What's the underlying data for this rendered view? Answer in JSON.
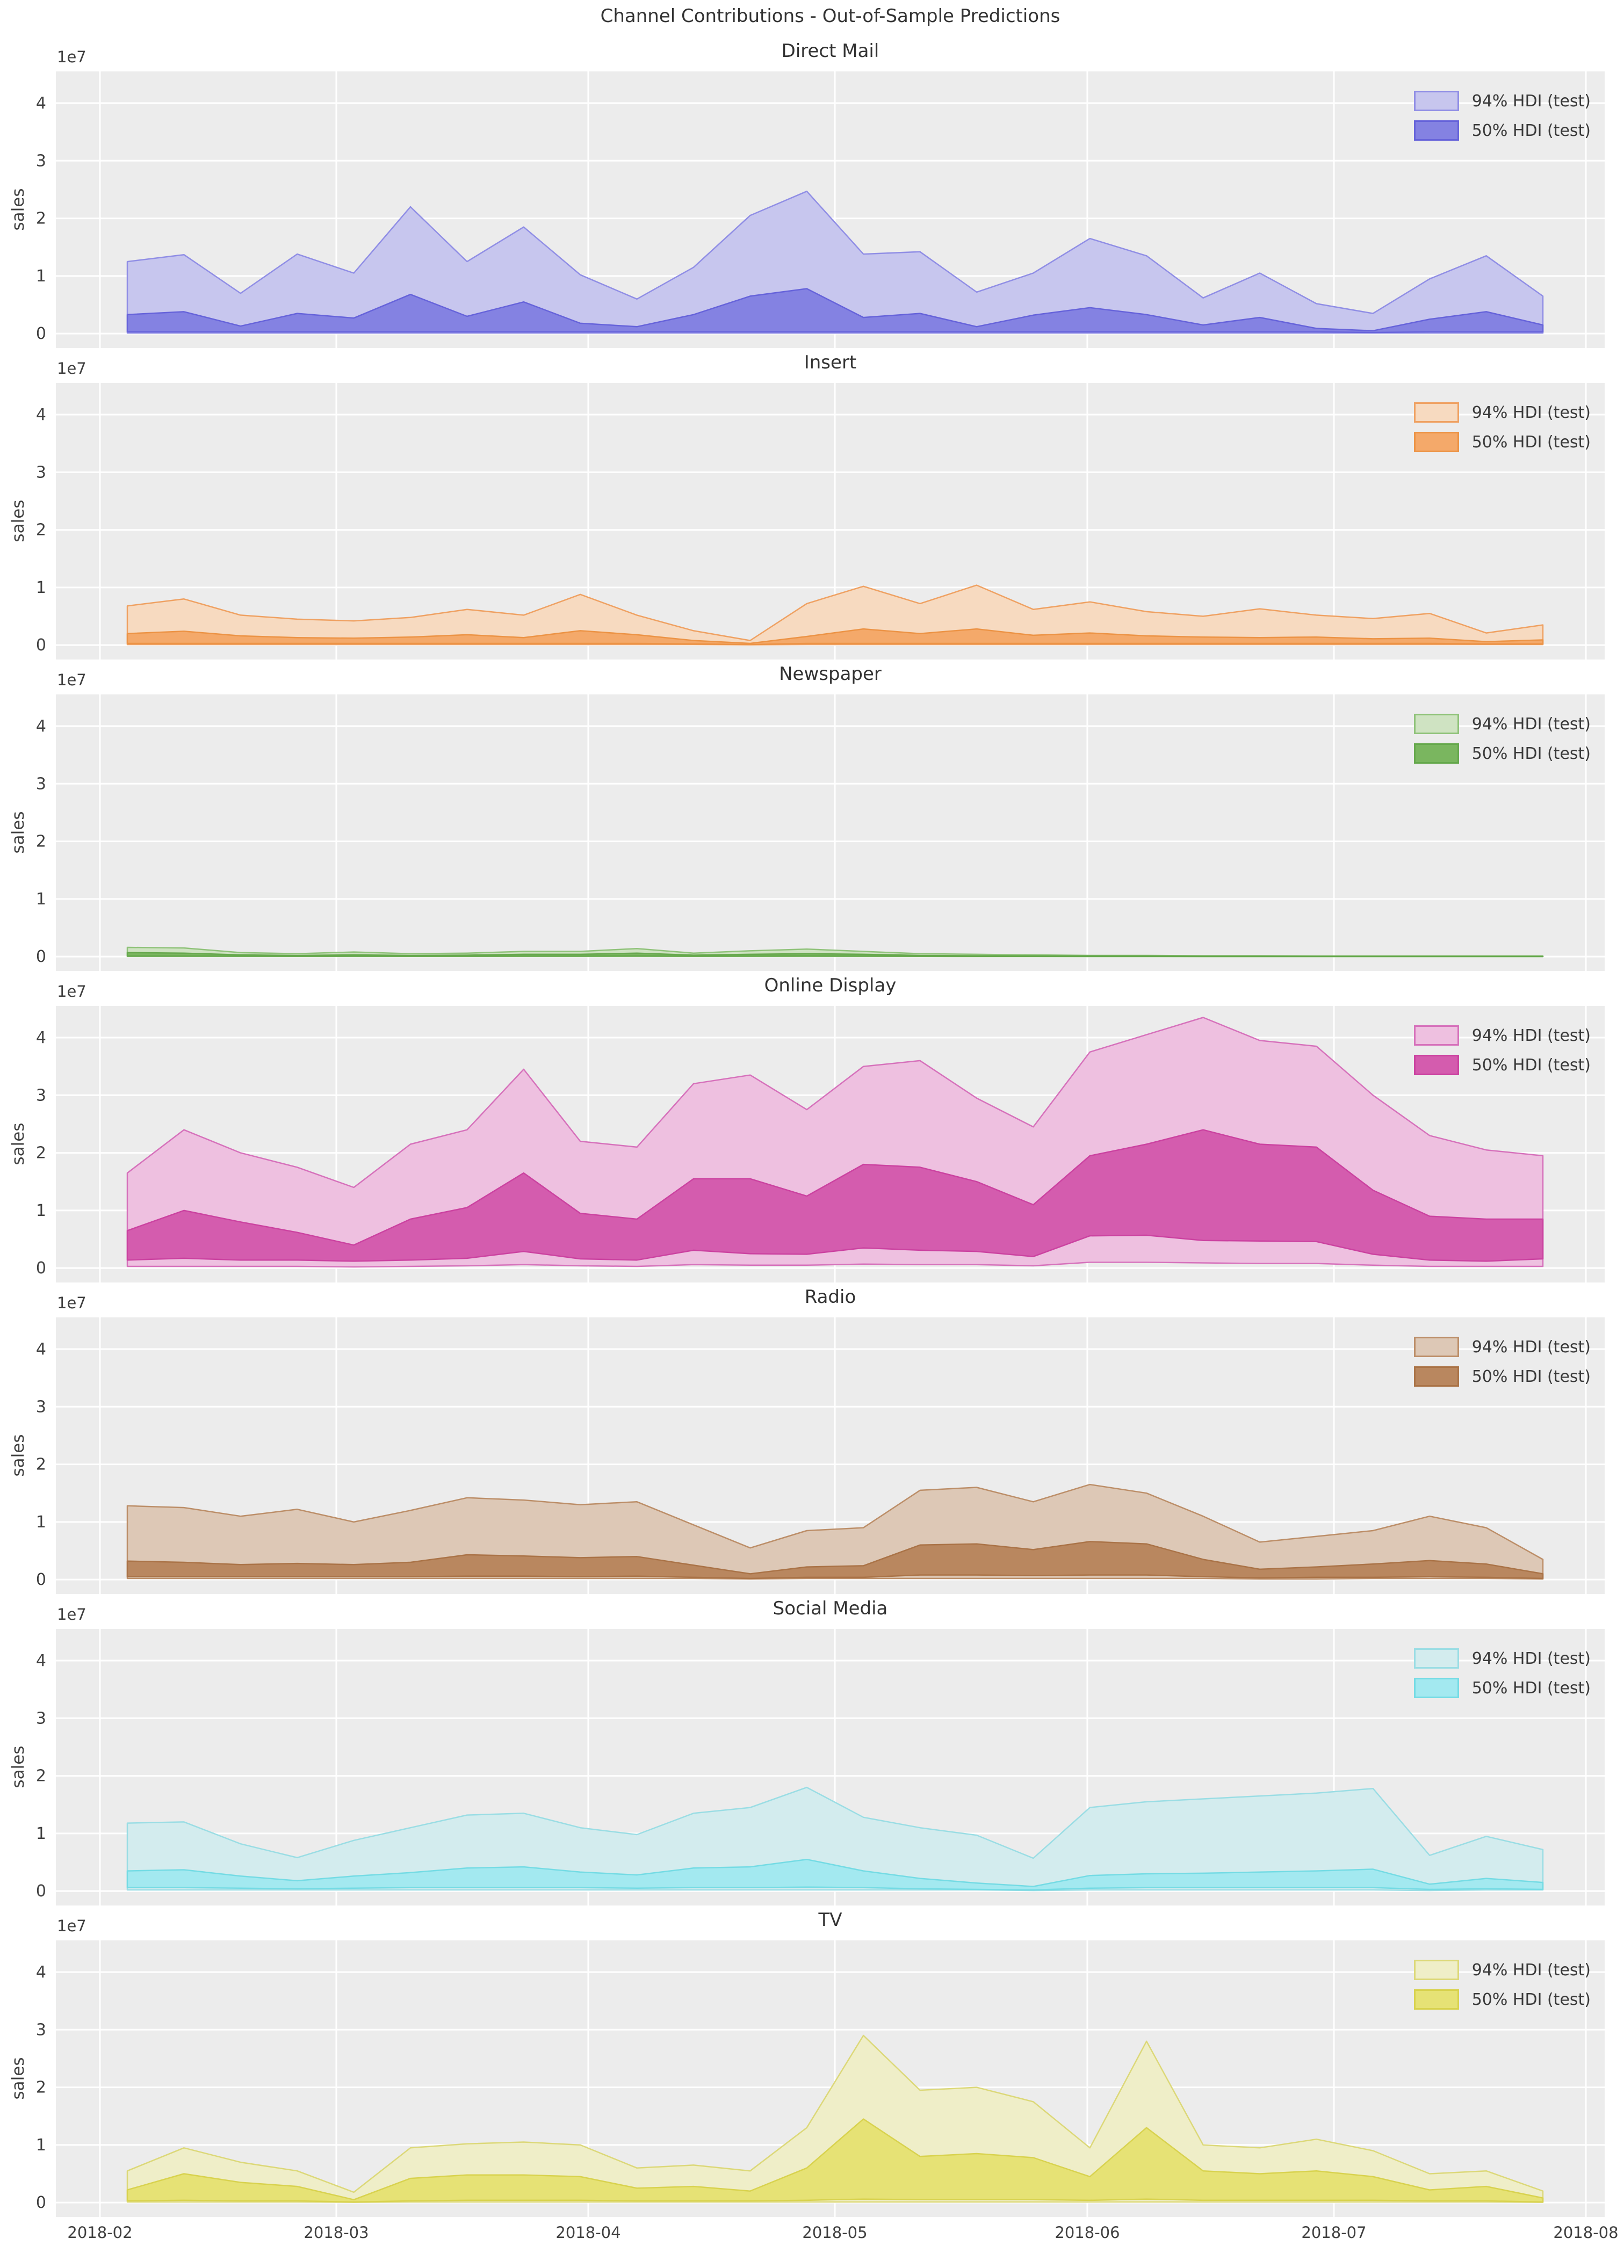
{
  "figure": {
    "suptitle": "Channel Contributions - Out-of-Sample Predictions",
    "ylabel": "sales",
    "offset_label": "1e7",
    "background": "#ffffff",
    "panel_color": "#ececec",
    "grid_color": "#ffffff",
    "text_color": "#3a3a3a",
    "yticks": [
      "0",
      "1",
      "2",
      "3",
      "4"
    ],
    "xticks": [
      "2018-02",
      "2018-03",
      "2018-04",
      "2018-05",
      "2018-06",
      "2018-07",
      "2018-08"
    ],
    "legend_labels": [
      "94% HDI (test)",
      "50% HDI (test)"
    ]
  },
  "chart_data": [
    {
      "type": "area",
      "title": "Direct Mail",
      "unit": "1e7",
      "ylim": [
        -0.25,
        4.55
      ],
      "grid": true,
      "legend_position": "upper right",
      "colors": {
        "fill94": "#c7c6ee",
        "edge94": "#908ee5",
        "fill50": "#8482e2",
        "edge50": "#6663da"
      },
      "hdi94_upper": [
        1.25,
        1.37,
        0.7,
        1.38,
        1.05,
        2.2,
        1.25,
        1.85,
        1.02,
        0.6,
        1.15,
        2.05,
        2.47,
        1.38,
        1.42,
        0.72,
        1.05,
        1.65,
        1.35,
        0.62,
        1.05,
        0.52,
        0.35,
        0.95,
        1.35,
        0.65
      ],
      "hdi94_lower": [
        0.01,
        0.01,
        0.01,
        0.01,
        0.01,
        0.01,
        0.01,
        0.01,
        0.01,
        0.01,
        0.01,
        0.01,
        0.01,
        0.01,
        0.01,
        0.01,
        0.01,
        0.01,
        0.01,
        0.01,
        0.01,
        0.01,
        0.01,
        0.01,
        0.01,
        0.01
      ],
      "hdi50_upper": [
        0.33,
        0.38,
        0.13,
        0.35,
        0.27,
        0.68,
        0.3,
        0.55,
        0.18,
        0.12,
        0.33,
        0.65,
        0.78,
        0.28,
        0.35,
        0.12,
        0.32,
        0.45,
        0.33,
        0.15,
        0.28,
        0.09,
        0.05,
        0.25,
        0.38,
        0.15
      ],
      "hdi50_lower": [
        0.03,
        0.03,
        0.03,
        0.03,
        0.03,
        0.03,
        0.03,
        0.03,
        0.03,
        0.03,
        0.03,
        0.03,
        0.03,
        0.03,
        0.03,
        0.03,
        0.03,
        0.03,
        0.03,
        0.03,
        0.03,
        0.03,
        0.02,
        0.03,
        0.03,
        0.03
      ]
    },
    {
      "type": "area",
      "title": "Insert",
      "unit": "1e7",
      "ylim": [
        -0.25,
        4.55
      ],
      "grid": true,
      "legend_position": "upper right",
      "colors": {
        "fill94": "#f7dac0",
        "edge94": "#efa162",
        "fill50": "#f4a96a",
        "edge50": "#ec9345"
      },
      "hdi94_upper": [
        0.68,
        0.8,
        0.52,
        0.45,
        0.42,
        0.48,
        0.62,
        0.52,
        0.88,
        0.52,
        0.25,
        0.08,
        0.72,
        1.02,
        0.72,
        1.04,
        0.62,
        0.75,
        0.58,
        0.5,
        0.63,
        0.52,
        0.46,
        0.55,
        0.21,
        0.35
      ],
      "hdi94_lower": [
        0.01,
        0.01,
        0.01,
        0.01,
        0.01,
        0.01,
        0.01,
        0.01,
        0.01,
        0.01,
        0.01,
        0.005,
        0.01,
        0.01,
        0.01,
        0.01,
        0.01,
        0.01,
        0.01,
        0.01,
        0.01,
        0.01,
        0.01,
        0.01,
        0.01,
        0.01
      ],
      "hdi50_upper": [
        0.2,
        0.24,
        0.16,
        0.13,
        0.12,
        0.14,
        0.18,
        0.13,
        0.25,
        0.18,
        0.08,
        0.03,
        0.15,
        0.28,
        0.2,
        0.28,
        0.17,
        0.21,
        0.16,
        0.14,
        0.13,
        0.14,
        0.11,
        0.12,
        0.06,
        0.09
      ],
      "hdi50_lower": [
        0.03,
        0.03,
        0.03,
        0.03,
        0.03,
        0.03,
        0.03,
        0.03,
        0.03,
        0.03,
        0.02,
        0.01,
        0.03,
        0.03,
        0.03,
        0.03,
        0.03,
        0.03,
        0.03,
        0.03,
        0.03,
        0.03,
        0.03,
        0.03,
        0.02,
        0.02
      ]
    },
    {
      "type": "area",
      "title": "Newspaper",
      "unit": "1e7",
      "ylim": [
        -0.25,
        4.55
      ],
      "grid": true,
      "legend_position": "upper right",
      "colors": {
        "fill94": "#cfe3c2",
        "edge94": "#8fc279",
        "fill50": "#7ab65f",
        "edge50": "#65a84c"
      },
      "hdi94_upper": [
        0.16,
        0.15,
        0.07,
        0.05,
        0.08,
        0.05,
        0.06,
        0.09,
        0.09,
        0.14,
        0.06,
        0.1,
        0.13,
        0.09,
        0.05,
        0.04,
        0.03,
        0.02,
        0.02,
        0.015,
        0.015,
        0.01,
        0.01,
        0.01,
        0.01,
        0.01
      ],
      "hdi94_lower": [
        0.003,
        0.003,
        0.003,
        0.003,
        0.003,
        0.003,
        0.003,
        0.003,
        0.003,
        0.003,
        0.003,
        0.003,
        0.003,
        0.003,
        0.003,
        0.002,
        0.002,
        0.002,
        0.002,
        0.002,
        0.002,
        0.002,
        0.002,
        0.002,
        0.002,
        0.002
      ],
      "hdi50_upper": [
        0.07,
        0.06,
        0.03,
        0.02,
        0.03,
        0.02,
        0.025,
        0.04,
        0.04,
        0.06,
        0.025,
        0.04,
        0.05,
        0.04,
        0.02,
        0.015,
        0.012,
        0.01,
        0.008,
        0.006,
        0.006,
        0.005,
        0.005,
        0.005,
        0.005,
        0.005
      ],
      "hdi50_lower": [
        0.01,
        0.01,
        0.008,
        0.006,
        0.008,
        0.006,
        0.007,
        0.01,
        0.01,
        0.012,
        0.007,
        0.01,
        0.012,
        0.01,
        0.006,
        0.004,
        0.004,
        0.003,
        0.003,
        0.002,
        0.002,
        0.002,
        0.002,
        0.002,
        0.002,
        0.002
      ]
    },
    {
      "type": "area",
      "title": "Online Display",
      "unit": "1e7",
      "ylim": [
        -0.25,
        4.55
      ],
      "grid": true,
      "legend_position": "upper right",
      "colors": {
        "fill94": "#eec0e0",
        "edge94": "#d671bb",
        "fill50": "#d45cae",
        "edge50": "#cb42a0"
      },
      "hdi94_upper": [
        1.65,
        2.4,
        2.0,
        1.75,
        1.4,
        2.15,
        2.4,
        3.45,
        2.2,
        2.1,
        3.2,
        3.35,
        2.75,
        3.5,
        3.6,
        2.95,
        2.45,
        3.75,
        4.05,
        4.35,
        3.95,
        3.85,
        3.0,
        2.3,
        2.05,
        1.95
      ],
      "hdi94_lower": [
        0.03,
        0.03,
        0.03,
        0.03,
        0.02,
        0.03,
        0.04,
        0.06,
        0.04,
        0.03,
        0.06,
        0.05,
        0.05,
        0.07,
        0.06,
        0.06,
        0.04,
        0.1,
        0.1,
        0.09,
        0.08,
        0.08,
        0.05,
        0.03,
        0.03,
        0.03
      ],
      "hdi50_upper": [
        0.65,
        1.0,
        0.8,
        0.62,
        0.4,
        0.85,
        1.05,
        1.65,
        0.95,
        0.85,
        1.55,
        1.55,
        1.25,
        1.8,
        1.75,
        1.5,
        1.1,
        1.95,
        2.15,
        2.4,
        2.15,
        2.1,
        1.35,
        0.9,
        0.85,
        0.85
      ],
      "hdi50_lower": [
        0.14,
        0.17,
        0.14,
        0.14,
        0.12,
        0.14,
        0.17,
        0.29,
        0.16,
        0.14,
        0.31,
        0.25,
        0.24,
        0.35,
        0.31,
        0.29,
        0.2,
        0.56,
        0.57,
        0.48,
        0.47,
        0.46,
        0.24,
        0.14,
        0.12,
        0.16
      ]
    },
    {
      "type": "area",
      "title": "Radio",
      "unit": "1e7",
      "ylim": [
        -0.25,
        4.55
      ],
      "grid": true,
      "legend_position": "upper right",
      "colors": {
        "fill94": "#ddc8b6",
        "edge94": "#bc8e68",
        "fill50": "#b9875f",
        "edge50": "#aa7347"
      },
      "hdi94_upper": [
        1.28,
        1.25,
        1.1,
        1.22,
        1.0,
        1.2,
        1.42,
        1.38,
        1.3,
        1.35,
        0.95,
        0.55,
        0.85,
        0.9,
        1.55,
        1.6,
        1.35,
        1.65,
        1.5,
        1.1,
        0.65,
        0.75,
        0.85,
        1.1,
        0.9,
        0.35
      ],
      "hdi94_lower": [
        0.02,
        0.02,
        0.02,
        0.02,
        0.02,
        0.02,
        0.02,
        0.02,
        0.02,
        0.02,
        0.02,
        0.01,
        0.02,
        0.02,
        0.02,
        0.02,
        0.02,
        0.02,
        0.02,
        0.02,
        0.01,
        0.01,
        0.02,
        0.02,
        0.02,
        0.01
      ],
      "hdi50_upper": [
        0.32,
        0.3,
        0.26,
        0.28,
        0.26,
        0.3,
        0.43,
        0.41,
        0.38,
        0.4,
        0.25,
        0.1,
        0.22,
        0.24,
        0.6,
        0.62,
        0.52,
        0.66,
        0.62,
        0.35,
        0.18,
        0.22,
        0.27,
        0.33,
        0.27,
        0.1
      ],
      "hdi50_lower": [
        0.05,
        0.05,
        0.05,
        0.05,
        0.05,
        0.05,
        0.06,
        0.06,
        0.05,
        0.06,
        0.04,
        0.02,
        0.04,
        0.04,
        0.08,
        0.08,
        0.07,
        0.08,
        0.08,
        0.05,
        0.03,
        0.04,
        0.04,
        0.05,
        0.04,
        0.02
      ]
    },
    {
      "type": "area",
      "title": "Social Media",
      "unit": "1e7",
      "ylim": [
        -0.25,
        4.55
      ],
      "grid": true,
      "legend_position": "upper right",
      "colors": {
        "fill94": "#d3ecee",
        "edge94": "#9adde4",
        "fill50": "#a3e9f0",
        "edge50": "#74dbe4"
      },
      "hdi94_upper": [
        1.18,
        1.2,
        0.82,
        0.58,
        0.88,
        1.1,
        1.32,
        1.35,
        1.1,
        0.98,
        1.35,
        1.45,
        1.8,
        1.28,
        1.1,
        0.97,
        0.57,
        1.45,
        1.55,
        1.6,
        1.65,
        1.7,
        1.78,
        0.62,
        0.95,
        0.72
      ],
      "hdi94_lower": [
        0.02,
        0.02,
        0.02,
        0.02,
        0.02,
        0.02,
        0.02,
        0.02,
        0.02,
        0.02,
        0.02,
        0.02,
        0.02,
        0.02,
        0.02,
        0.02,
        0.01,
        0.02,
        0.02,
        0.02,
        0.02,
        0.02,
        0.02,
        0.01,
        0.02,
        0.02
      ],
      "hdi50_upper": [
        0.35,
        0.37,
        0.26,
        0.18,
        0.26,
        0.32,
        0.4,
        0.42,
        0.33,
        0.28,
        0.4,
        0.42,
        0.55,
        0.35,
        0.22,
        0.14,
        0.08,
        0.27,
        0.3,
        0.31,
        0.33,
        0.35,
        0.38,
        0.12,
        0.22,
        0.15
      ],
      "hdi50_lower": [
        0.06,
        0.06,
        0.05,
        0.04,
        0.05,
        0.06,
        0.06,
        0.06,
        0.06,
        0.05,
        0.06,
        0.06,
        0.07,
        0.06,
        0.04,
        0.03,
        0.02,
        0.05,
        0.06,
        0.06,
        0.06,
        0.06,
        0.06,
        0.03,
        0.04,
        0.03
      ]
    },
    {
      "type": "area",
      "title": "TV",
      "unit": "1e7",
      "ylim": [
        -0.25,
        4.55
      ],
      "grid": true,
      "legend_position": "upper right",
      "colors": {
        "fill94": "#efeec8",
        "edge94": "#dcd878",
        "fill50": "#e6e275",
        "edge50": "#d8d24e"
      },
      "hdi94_upper": [
        0.55,
        0.95,
        0.7,
        0.55,
        0.18,
        0.95,
        1.02,
        1.05,
        1.0,
        0.6,
        0.65,
        0.55,
        1.3,
        2.9,
        1.95,
        2.0,
        1.75,
        0.95,
        2.8,
        1.0,
        0.95,
        1.1,
        0.9,
        0.5,
        0.55,
        0.2
      ],
      "hdi94_lower": [
        0.01,
        0.01,
        0.01,
        0.01,
        0.005,
        0.01,
        0.01,
        0.01,
        0.01,
        0.01,
        0.01,
        0.01,
        0.01,
        0.01,
        0.01,
        0.01,
        0.01,
        0.01,
        0.01,
        0.01,
        0.01,
        0.01,
        0.01,
        0.01,
        0.01,
        0.005
      ],
      "hdi50_upper": [
        0.22,
        0.5,
        0.35,
        0.28,
        0.05,
        0.42,
        0.48,
        0.48,
        0.45,
        0.25,
        0.28,
        0.2,
        0.6,
        1.45,
        0.8,
        0.85,
        0.78,
        0.45,
        1.3,
        0.55,
        0.5,
        0.55,
        0.45,
        0.22,
        0.28,
        0.08
      ],
      "hdi50_lower": [
        0.03,
        0.04,
        0.03,
        0.03,
        0.01,
        0.03,
        0.04,
        0.04,
        0.04,
        0.03,
        0.03,
        0.03,
        0.04,
        0.06,
        0.05,
        0.05,
        0.05,
        0.04,
        0.06,
        0.04,
        0.04,
        0.04,
        0.04,
        0.03,
        0.03,
        0.01
      ]
    }
  ]
}
